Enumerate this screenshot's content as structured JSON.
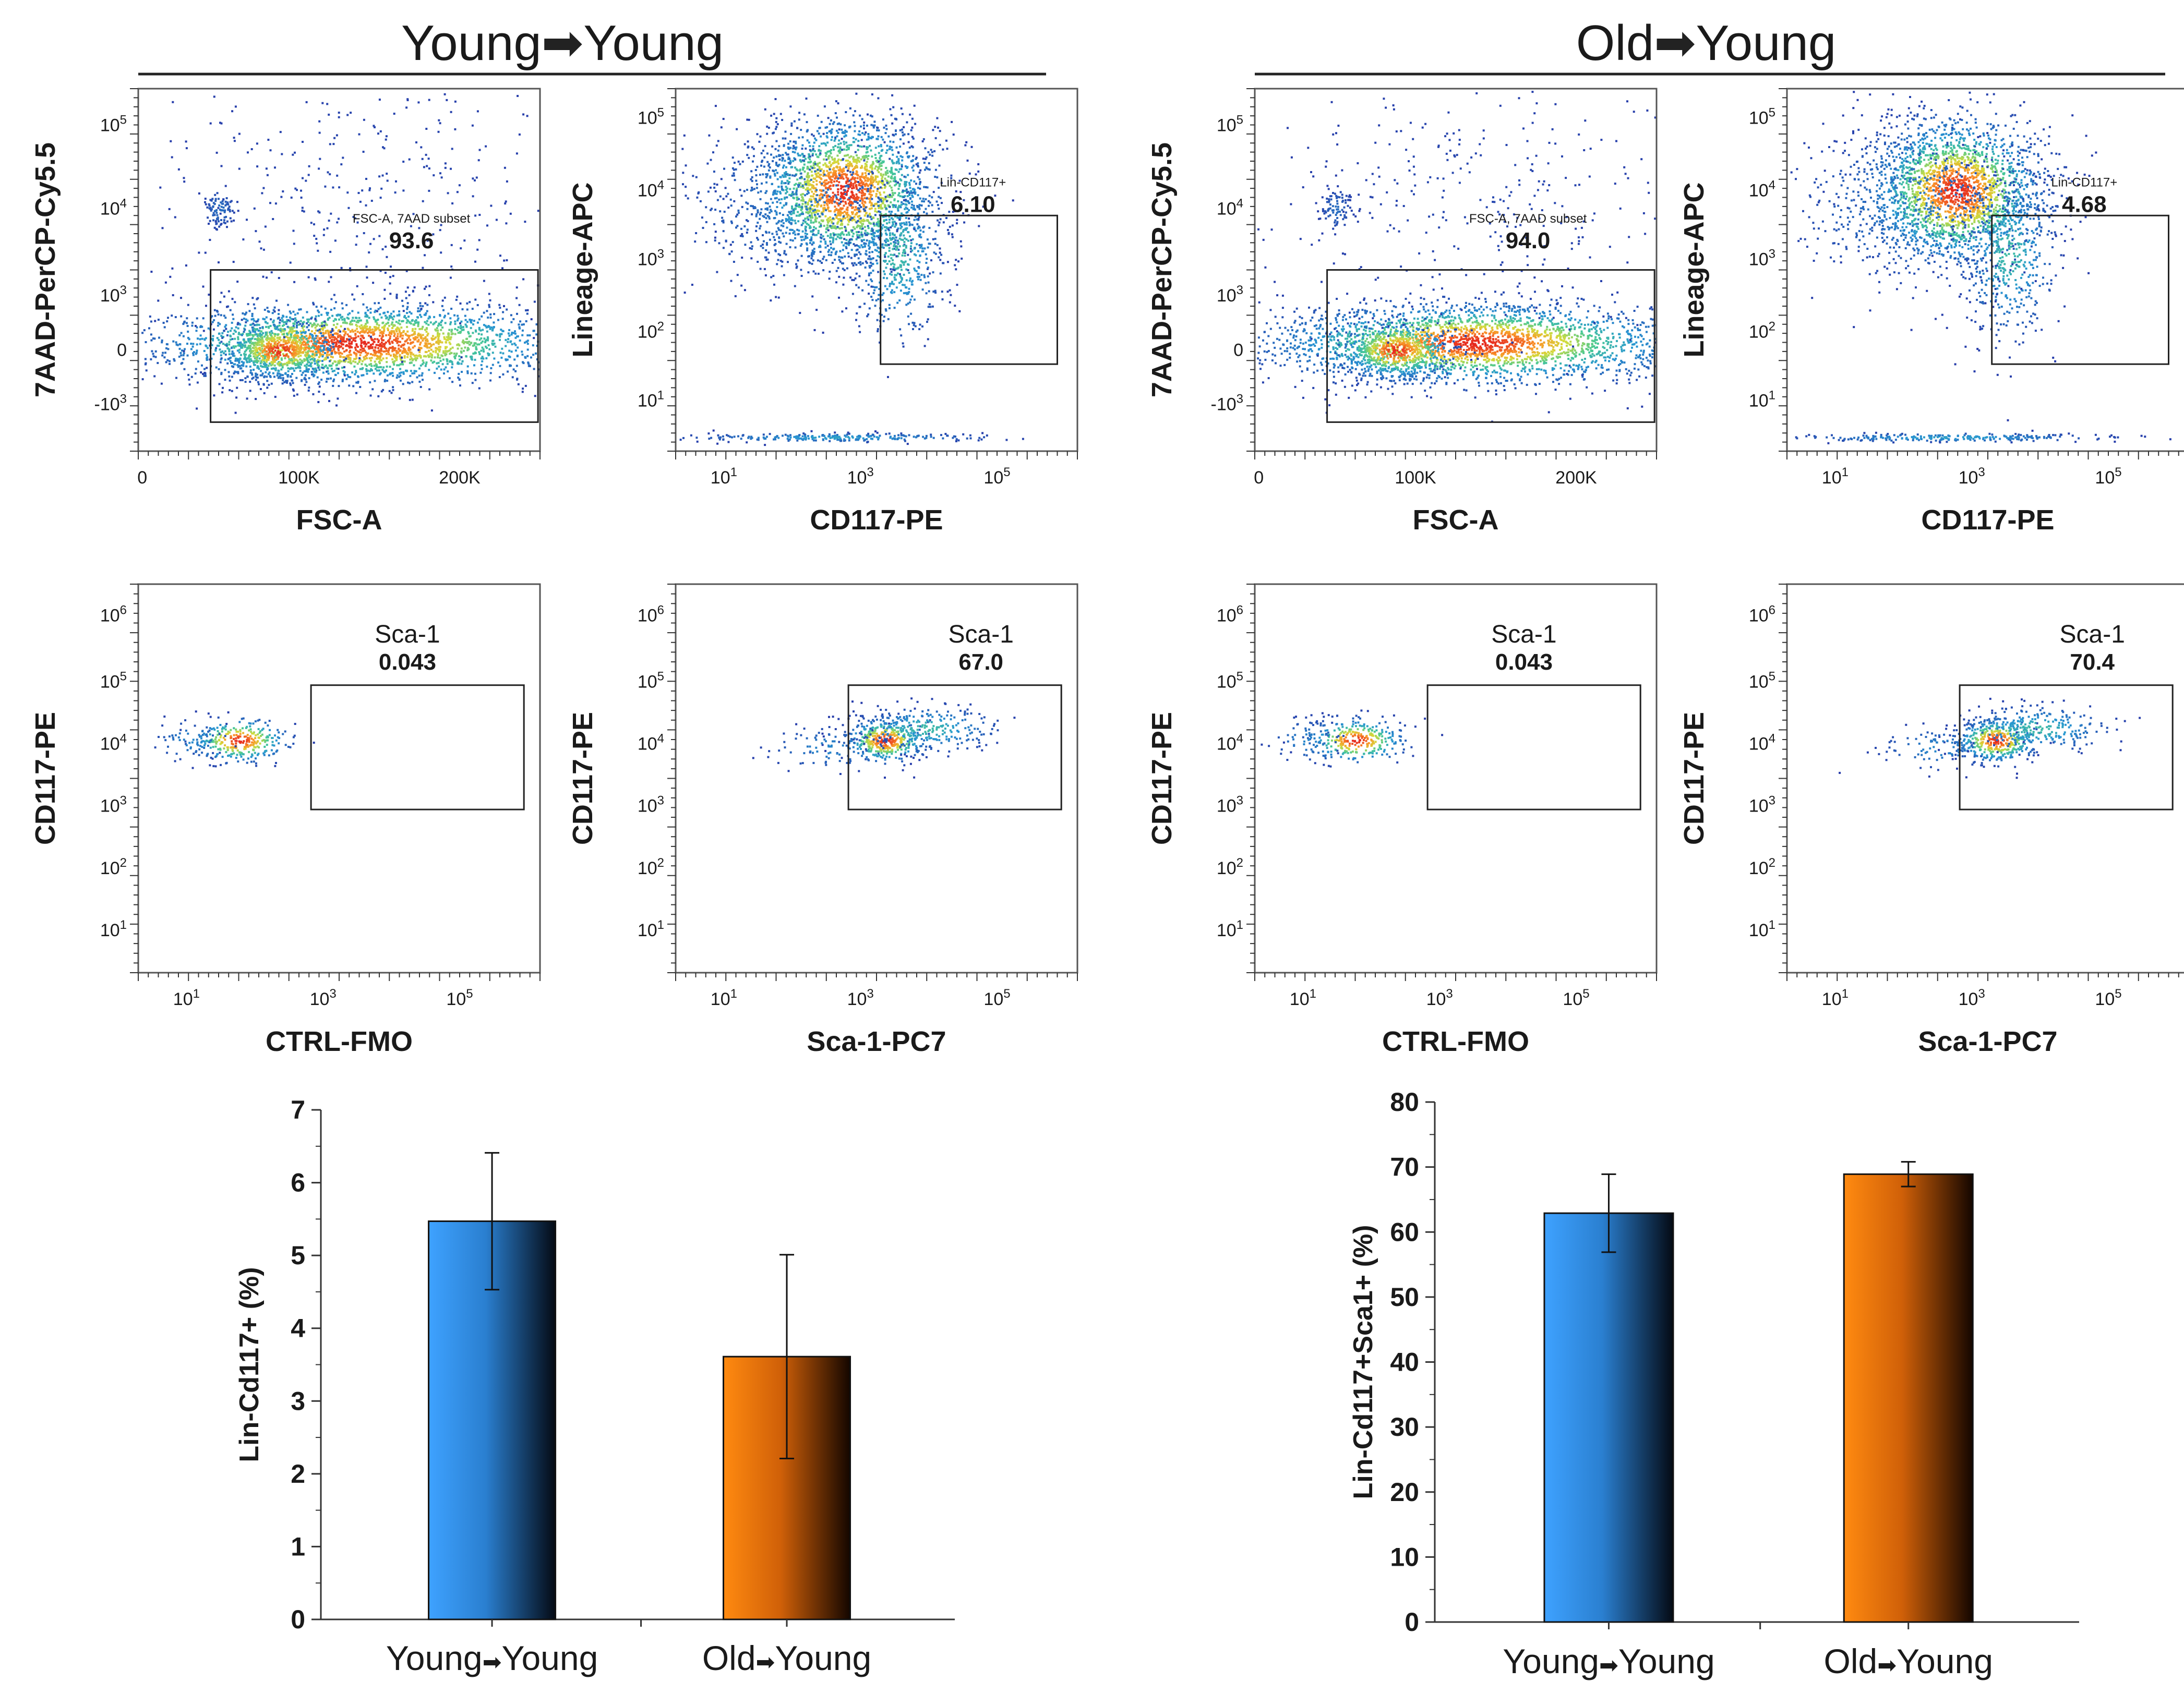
{
  "groups": [
    {
      "id": "young-young",
      "title": "Young",
      "title2": "Young",
      "arrow": "➡"
    },
    {
      "id": "old-young",
      "title": "Old",
      "title2": "Young",
      "arrow": "➡"
    }
  ],
  "flow_panels": [
    {
      "id": "yy-7aad",
      "group": 0,
      "row": 0,
      "col": 0,
      "type": "fsc",
      "xlabel": "FSC-A",
      "ylabel": "7AAD-PerCP-Cy5.5",
      "xticks": [
        "0",
        "100K",
        "200K"
      ],
      "yticks": [
        "10^5",
        "10^4",
        "10^3",
        "0",
        "-10^3"
      ],
      "gate_name": "FSC-A, 7AAD subset",
      "gate_value": "93.6"
    },
    {
      "id": "yy-lin",
      "group": 0,
      "row": 0,
      "col": 1,
      "type": "lin",
      "xlabel": "CD117-PE",
      "ylabel": "Lineage-APC",
      "xticks": [
        "10^1",
        "10^3",
        "10^5"
      ],
      "yticks": [
        "10^5",
        "10^4",
        "10^3",
        "10^2",
        "10^1"
      ],
      "gate_name": "Lin-CD117+",
      "gate_value": "6.10"
    },
    {
      "id": "yy-fmo",
      "group": 0,
      "row": 1,
      "col": 0,
      "type": "fmo",
      "xlabel": "CTRL-FMO",
      "ylabel": "CD117-PE",
      "xticks": [
        "10^1",
        "10^3",
        "10^5"
      ],
      "yticks": [
        "10^6",
        "10^5",
        "10^4",
        "10^3",
        "10^2",
        "10^1"
      ],
      "gate_name": "Sca-1",
      "gate_value": "0.043"
    },
    {
      "id": "yy-sca",
      "group": 0,
      "row": 1,
      "col": 1,
      "type": "sca",
      "xlabel": "Sca-1-PC7",
      "ylabel": "CD117-PE",
      "xticks": [
        "10^1",
        "10^3",
        "10^5"
      ],
      "yticks": [
        "10^6",
        "10^5",
        "10^4",
        "10^3",
        "10^2",
        "10^1"
      ],
      "gate_name": "Sca-1",
      "gate_value": "67.0"
    },
    {
      "id": "oy-7aad",
      "group": 1,
      "row": 0,
      "col": 0,
      "type": "fsc",
      "xlabel": "FSC-A",
      "ylabel": "7AAD-PerCP-Cy5.5",
      "xticks": [
        "0",
        "100K",
        "200K"
      ],
      "yticks": [
        "10^5",
        "10^4",
        "10^3",
        "0",
        "-10^3"
      ],
      "gate_name": "FSC-A, 7AAD subset",
      "gate_value": "94.0"
    },
    {
      "id": "oy-lin",
      "group": 1,
      "row": 0,
      "col": 1,
      "type": "lin",
      "xlabel": "CD117-PE",
      "ylabel": "Lineage-APC",
      "xticks": [
        "10^1",
        "10^3",
        "10^5"
      ],
      "yticks": [
        "10^5",
        "10^4",
        "10^3",
        "10^2",
        "10^1"
      ],
      "gate_name": "Lin-CD117+",
      "gate_value": "4.68"
    },
    {
      "id": "oy-fmo",
      "group": 1,
      "row": 1,
      "col": 0,
      "type": "fmo",
      "xlabel": "CTRL-FMO",
      "ylabel": "CD117-PE",
      "xticks": [
        "10^1",
        "10^3",
        "10^5"
      ],
      "yticks": [
        "10^6",
        "10^5",
        "10^4",
        "10^3",
        "10^2",
        "10^1"
      ],
      "gate_name": "Sca-1",
      "gate_value": "0.043"
    },
    {
      "id": "oy-sca",
      "group": 1,
      "row": 1,
      "col": 1,
      "type": "sca",
      "xlabel": "Sca-1-PC7",
      "ylabel": "CD117-PE",
      "xticks": [
        "10^1",
        "10^3",
        "10^5"
      ],
      "yticks": [
        "10^6",
        "10^5",
        "10^4",
        "10^3",
        "10^2",
        "10^1"
      ],
      "gate_name": "Sca-1",
      "gate_value": "70.4"
    }
  ],
  "colors": {
    "blue_bar": "#3399ff",
    "orange_bar": "#ff8000",
    "dot_base": "#2b3fa8"
  },
  "chart_data": [
    {
      "type": "bar",
      "id": "lin-cd117",
      "title": "",
      "xlabel": "",
      "ylabel": "Lin-Cd117+ (%)",
      "categories": [
        "Young➡Young",
        "Old➡Young"
      ],
      "cat_parts": [
        [
          "Young",
          "Young"
        ],
        [
          "Old",
          "Young"
        ]
      ],
      "values": [
        5.47,
        3.61
      ],
      "errors": [
        0.94,
        1.4
      ],
      "ylim": [
        0,
        7
      ],
      "yticks": [
        0,
        1,
        2,
        3,
        4,
        5,
        6,
        7
      ]
    },
    {
      "type": "bar",
      "id": "lin-cd117-sca1",
      "title": "",
      "xlabel": "",
      "ylabel": "Lin-Cd117+Sca1+ (%)",
      "categories": [
        "Young➡Young",
        "Old➡Young"
      ],
      "cat_parts": [
        [
          "Young",
          "Young"
        ],
        [
          "Old",
          "Young"
        ]
      ],
      "values": [
        62.9,
        68.9
      ],
      "errors": [
        6.0,
        1.9
      ],
      "ylim": [
        0,
        80
      ],
      "yticks": [
        0,
        10,
        20,
        30,
        40,
        50,
        60,
        70,
        80
      ]
    }
  ]
}
